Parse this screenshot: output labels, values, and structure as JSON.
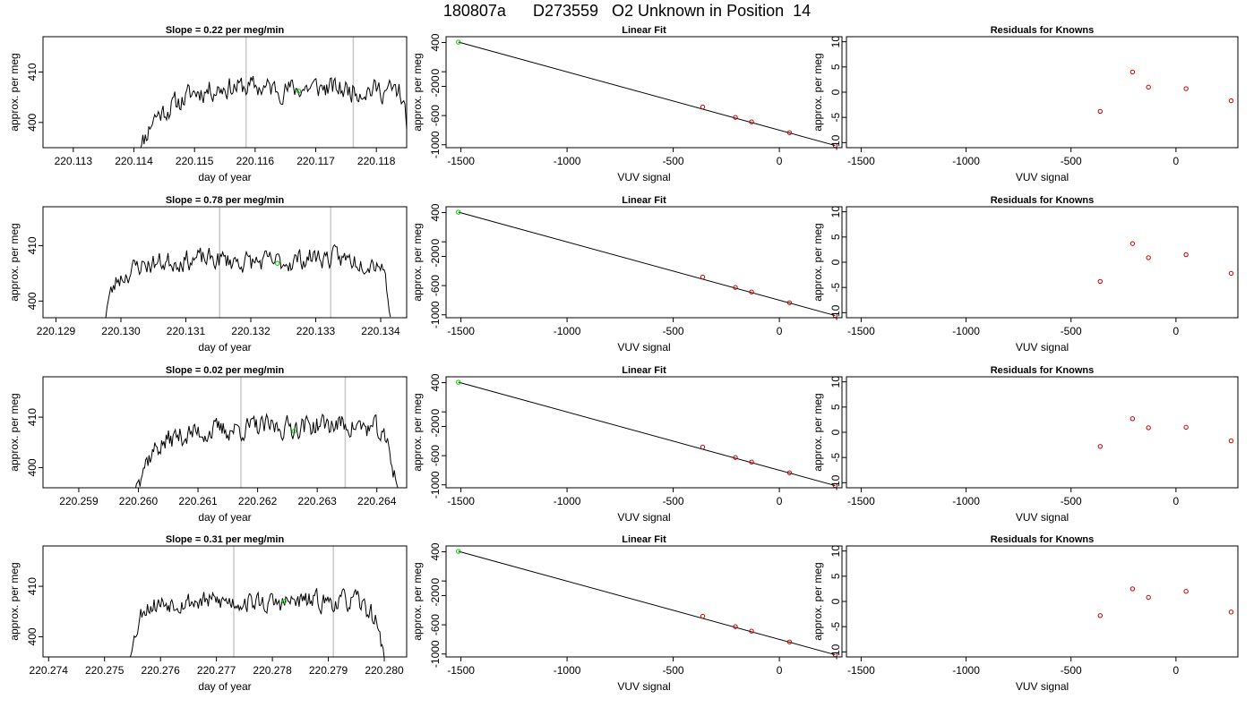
{
  "page": {
    "title": "180807a      D273559   O2 Unknown in Position  14"
  },
  "colors": {
    "trace": "#000000",
    "vline": "#c8c8c8",
    "known_point": "#cc0000",
    "unknown_point": "#00cc00",
    "fit_line": "#000000"
  },
  "chart_data": [
    {
      "type": "line",
      "row": 1,
      "title": "Slope =  0.22  per meg/min",
      "xlabel": "day of year",
      "ylabel": "approx. per meg",
      "xlim": [
        220.1125,
        220.1185
      ],
      "ylim": [
        395,
        417
      ],
      "xticks": [
        220.113,
        220.114,
        220.115,
        220.116,
        220.117,
        220.118
      ],
      "xtick_labels": [
        "220.113",
        "220.114",
        "220.115",
        "220.116",
        "220.117",
        "220.118"
      ],
      "yticks": [
        400,
        410
      ],
      "ytick_labels": [
        "400",
        "410"
      ],
      "trace_start": 220.11405,
      "trace_end": 220.11855,
      "trace_keys": [
        [
          220.11405,
          394
        ],
        [
          220.11418,
          397
        ],
        [
          220.11432,
          401
        ],
        [
          220.1146,
          403
        ],
        [
          220.115,
          406
        ],
        [
          220.1155,
          407
        ],
        [
          220.116,
          407
        ],
        [
          220.1165,
          406.5
        ],
        [
          220.117,
          407
        ],
        [
          220.1175,
          406.5
        ],
        [
          220.118,
          406.5
        ],
        [
          220.1184,
          406
        ],
        [
          220.11848,
          401
        ],
        [
          220.11855,
          393
        ]
      ],
      "noise_amp": 2.2,
      "seed": 11,
      "vlines": [
        220.11585,
        220.11762
      ],
      "mean_point": [
        220.11672,
        406.2
      ]
    },
    {
      "type": "scatter",
      "row": 1,
      "title": "Linear Fit",
      "xlabel": "VUV signal",
      "ylabel": "approx. per meg",
      "xlim": [
        -1570,
        295
      ],
      "ylim": [
        -1040,
        480
      ],
      "xticks": [
        -1500,
        -1000,
        -500,
        0
      ],
      "xtick_labels": [
        "-1500",
        "-1000",
        "-500",
        "0"
      ],
      "yticks": [
        -1000,
        -600,
        -200,
        0,
        400
      ],
      "ytick_labels": [
        "-1000",
        "-600",
        "-200",
        "0",
        "400"
      ],
      "known_points": [
        [
          -361,
          -483
        ],
        [
          -207,
          -625
        ],
        [
          -131,
          -687
        ],
        [
          48,
          -835
        ],
        [
          263,
          -1010
        ]
      ],
      "unknown_point": [
        -1512,
        406
      ],
      "fit_line": [
        [
          -1512,
          406
        ],
        [
          263,
          -1010
        ]
      ]
    },
    {
      "type": "scatter",
      "row": 1,
      "title": "Residuals for Knowns",
      "xlabel": "VUV signal",
      "ylabel": "approx. per meg",
      "xlim": [
        -1570,
        295
      ],
      "ylim": [
        -11,
        11
      ],
      "xticks": [
        -1500,
        -1000,
        -500,
        0
      ],
      "xtick_labels": [
        "-1500",
        "-1000",
        "-500",
        "0"
      ],
      "yticks": [
        -10,
        -5,
        0,
        5,
        10
      ],
      "ytick_labels": [
        "-10",
        "-5",
        "0",
        "5",
        "10"
      ],
      "points": [
        [
          -361,
          -3.8
        ],
        [
          -207,
          4.0
        ],
        [
          -131,
          1.0
        ],
        [
          48,
          0.7
        ],
        [
          263,
          -1.7
        ]
      ]
    },
    {
      "type": "line",
      "row": 2,
      "title": "Slope =  0.78  per meg/min",
      "xlabel": "day of year",
      "ylabel": "approx. per meg",
      "xlim": [
        220.1288,
        220.1344
      ],
      "ylim": [
        397,
        417
      ],
      "xticks": [
        220.129,
        220.13,
        220.131,
        220.132,
        220.133,
        220.134
      ],
      "xtick_labels": [
        "220.129",
        "220.130",
        "220.131",
        "220.132",
        "220.133",
        "220.134"
      ],
      "yticks": [
        400,
        410
      ],
      "ytick_labels": [
        "400",
        "410"
      ],
      "trace_start": 220.12975,
      "trace_end": 220.13415,
      "trace_keys": [
        [
          220.12975,
          396
        ],
        [
          220.1298,
          400
        ],
        [
          220.12995,
          404
        ],
        [
          220.1303,
          406.5
        ],
        [
          220.131,
          407.5
        ],
        [
          220.1315,
          407.5
        ],
        [
          220.132,
          407
        ],
        [
          220.1325,
          407
        ],
        [
          220.133,
          408
        ],
        [
          220.1335,
          407.5
        ],
        [
          220.134,
          407
        ],
        [
          220.13405,
          406
        ],
        [
          220.13415,
          397
        ]
      ],
      "noise_amp": 1.9,
      "seed": 23,
      "vlines": [
        220.13152,
        220.13323
      ],
      "mean_point": [
        220.13241,
        406.8
      ]
    },
    {
      "type": "scatter",
      "row": 2,
      "title": "Linear Fit",
      "xlabel": "VUV signal",
      "ylabel": "approx. per meg",
      "xlim": [
        -1570,
        295
      ],
      "ylim": [
        -1040,
        480
      ],
      "xticks": [
        -1500,
        -1000,
        -500,
        0
      ],
      "xtick_labels": [
        "-1500",
        "-1000",
        "-500",
        "0"
      ],
      "yticks": [
        -1000,
        -600,
        -200,
        0,
        400
      ],
      "ytick_labels": [
        "-1000",
        "-600",
        "-200",
        "0",
        "400"
      ],
      "known_points": [
        [
          -361,
          -483
        ],
        [
          -207,
          -625
        ],
        [
          -131,
          -687
        ],
        [
          48,
          -835
        ],
        [
          263,
          -1010
        ]
      ],
      "unknown_point": [
        -1512,
        406
      ],
      "fit_line": [
        [
          -1512,
          406
        ],
        [
          263,
          -1010
        ]
      ]
    },
    {
      "type": "scatter",
      "row": 2,
      "title": "Residuals for Knowns",
      "xlabel": "VUV signal",
      "ylabel": "approx. per meg",
      "xlim": [
        -1570,
        295
      ],
      "ylim": [
        -11,
        11
      ],
      "xticks": [
        -1500,
        -1000,
        -500,
        0
      ],
      "xtick_labels": [
        "-1500",
        "-1000",
        "-500",
        "0"
      ],
      "yticks": [
        -10,
        -5,
        0,
        5,
        10
      ],
      "ytick_labels": [
        "-10",
        "-5",
        "0",
        "5",
        "10"
      ],
      "points": [
        [
          -361,
          -3.8
        ],
        [
          -207,
          3.7
        ],
        [
          -131,
          0.9
        ],
        [
          48,
          1.5
        ],
        [
          263,
          -2.2
        ]
      ]
    },
    {
      "type": "line",
      "row": 3,
      "title": "Slope =  0.02  per meg/min",
      "xlabel": "day of year",
      "ylabel": "approx. per meg",
      "xlim": [
        220.2584,
        220.2645
      ],
      "ylim": [
        396,
        418
      ],
      "xticks": [
        220.259,
        220.26,
        220.261,
        220.262,
        220.263,
        220.264
      ],
      "xtick_labels": [
        "220.259",
        "220.260",
        "220.261",
        "220.262",
        "220.263",
        "220.264"
      ],
      "yticks": [
        400,
        410
      ],
      "ytick_labels": [
        "400",
        "410"
      ],
      "trace_start": 220.25995,
      "trace_end": 220.26435,
      "trace_keys": [
        [
          220.25995,
          396
        ],
        [
          220.26005,
          400
        ],
        [
          220.2603,
          404
        ],
        [
          220.2606,
          406
        ],
        [
          220.261,
          407
        ],
        [
          220.2615,
          407.5
        ],
        [
          220.262,
          408
        ],
        [
          220.2625,
          408
        ],
        [
          220.263,
          408.5
        ],
        [
          220.2635,
          408.5
        ],
        [
          220.264,
          407.5
        ],
        [
          220.2642,
          404
        ],
        [
          220.26435,
          396
        ]
      ],
      "noise_amp": 2.2,
      "seed": 37,
      "vlines": [
        220.26172,
        220.26347
      ],
      "mean_point": [
        220.26261,
        407.2
      ]
    },
    {
      "type": "scatter",
      "row": 3,
      "title": "Linear Fit",
      "xlabel": "VUV signal",
      "ylabel": "approx. per meg",
      "xlim": [
        -1570,
        295
      ],
      "ylim": [
        -1040,
        480
      ],
      "xticks": [
        -1500,
        -1000,
        -500,
        0
      ],
      "xtick_labels": [
        "-1500",
        "-1000",
        "-500",
        "0"
      ],
      "yticks": [
        -1000,
        -600,
        -200,
        0,
        400
      ],
      "ytick_labels": [
        "-1000",
        "-600",
        "-200",
        "0",
        "400"
      ],
      "known_points": [
        [
          -361,
          -483
        ],
        [
          -207,
          -625
        ],
        [
          -131,
          -687
        ],
        [
          48,
          -835
        ],
        [
          263,
          -1010
        ]
      ],
      "unknown_point": [
        -1512,
        406
      ],
      "fit_line": [
        [
          -1512,
          406
        ],
        [
          263,
          -1010
        ]
      ]
    },
    {
      "type": "scatter",
      "row": 3,
      "title": "Residuals for Knowns",
      "xlabel": "VUV signal",
      "ylabel": "approx. per meg",
      "xlim": [
        -1570,
        295
      ],
      "ylim": [
        -11,
        11
      ],
      "xticks": [
        -1500,
        -1000,
        -500,
        0
      ],
      "xtick_labels": [
        "-1500",
        "-1000",
        "-500",
        "0"
      ],
      "yticks": [
        -10,
        -5,
        0,
        5,
        10
      ],
      "ytick_labels": [
        "-10",
        "-5",
        "0",
        "5",
        "10"
      ],
      "points": [
        [
          -361,
          -2.8
        ],
        [
          -207,
          2.7
        ],
        [
          -131,
          0.9
        ],
        [
          48,
          1.0
        ],
        [
          263,
          -1.7
        ]
      ]
    },
    {
      "type": "line",
      "row": 4,
      "title": "Slope =  0.31  per meg/min",
      "xlabel": "day of year",
      "ylabel": "approx. per meg",
      "xlim": [
        220.2739,
        220.2804
      ],
      "ylim": [
        396,
        418
      ],
      "xticks": [
        220.274,
        220.275,
        220.276,
        220.277,
        220.278,
        220.279,
        220.28
      ],
      "xtick_labels": [
        "220.274",
        "220.275",
        "220.276",
        "220.277",
        "220.278",
        "220.279",
        "220.280"
      ],
      "yticks": [
        400,
        410
      ],
      "ytick_labels": [
        "400",
        "410"
      ],
      "trace_start": 220.27545,
      "trace_end": 220.28,
      "trace_keys": [
        [
          220.27545,
          396
        ],
        [
          220.27558,
          402
        ],
        [
          220.2757,
          406
        ],
        [
          220.2762,
          407
        ],
        [
          220.277,
          407
        ],
        [
          220.2775,
          407
        ],
        [
          220.278,
          406.5
        ],
        [
          220.2785,
          407
        ],
        [
          220.279,
          407
        ],
        [
          220.2795,
          407
        ],
        [
          220.27975,
          405
        ],
        [
          220.2799,
          402
        ],
        [
          220.28,
          396
        ]
      ],
      "noise_amp": 2.0,
      "seed": 53,
      "vlines": [
        220.27731,
        220.27909
      ],
      "mean_point": [
        220.27821,
        407.0
      ]
    },
    {
      "type": "scatter",
      "row": 4,
      "title": "Linear Fit",
      "xlabel": "VUV signal",
      "ylabel": "approx. per meg",
      "xlim": [
        -1570,
        295
      ],
      "ylim": [
        -1040,
        480
      ],
      "xticks": [
        -1500,
        -1000,
        -500,
        0
      ],
      "xtick_labels": [
        "-1500",
        "-1000",
        "-500",
        "0"
      ],
      "yticks": [
        -1000,
        -600,
        -200,
        0,
        400
      ],
      "ytick_labels": [
        "-1000",
        "-600",
        "-200",
        "0",
        "400"
      ],
      "known_points": [
        [
          -361,
          -483
        ],
        [
          -207,
          -625
        ],
        [
          -131,
          -687
        ],
        [
          48,
          -835
        ],
        [
          263,
          -1010
        ]
      ],
      "unknown_point": [
        -1512,
        406
      ],
      "fit_line": [
        [
          -1512,
          406
        ],
        [
          263,
          -1010
        ]
      ]
    },
    {
      "type": "scatter",
      "row": 4,
      "title": "Residuals for Knowns",
      "xlabel": "VUV signal",
      "ylabel": "approx. per meg",
      "xlim": [
        -1570,
        295
      ],
      "ylim": [
        -11,
        11
      ],
      "xticks": [
        -1500,
        -1000,
        -500,
        0
      ],
      "xtick_labels": [
        "-1500",
        "-1000",
        "-500",
        "0"
      ],
      "yticks": [
        -10,
        -5,
        0,
        5,
        10
      ],
      "ytick_labels": [
        "-10",
        "-5",
        "0",
        "5",
        "10"
      ],
      "points": [
        [
          -361,
          -2.8
        ],
        [
          -207,
          2.5
        ],
        [
          -131,
          0.8
        ],
        [
          48,
          2.0
        ],
        [
          263,
          -2.1
        ]
      ]
    }
  ]
}
